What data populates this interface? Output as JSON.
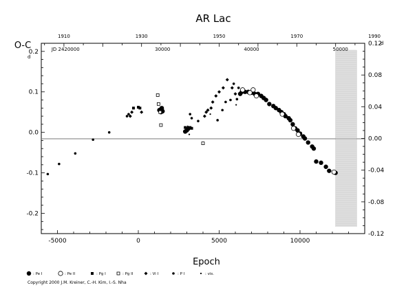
{
  "chart_data": {
    "type": "scatter",
    "title": "AR Lac",
    "xlabel": "Epoch",
    "ylabel": "O-C",
    "ylabel_unit": "d",
    "x_ticks": [
      "-5000",
      "0",
      "5000",
      "10000"
    ],
    "y_ticks": [
      "-0.2",
      "-0.1",
      "0.0",
      "0.1",
      "0.2"
    ],
    "right_ticks": [
      "-0.12",
      "-0.08",
      "-0.04",
      "0.00",
      "0.04",
      "0.08",
      "0.12"
    ],
    "right_unit": "d",
    "top_year_ticks": [
      "1910",
      "1930",
      "1950",
      "1970",
      "1990"
    ],
    "top_jd_label": "JD 2420000",
    "top_jd_ticks": [
      "30000",
      "40000",
      "50000"
    ],
    "xlim": [
      -6000,
      14000
    ],
    "ylim": [
      -0.25,
      0.22
    ],
    "right_ylim": [
      -0.12,
      0.12
    ],
    "grid": false,
    "series": [
      {
        "name": ": Pe I",
        "marker": "filled-circle",
        "points": [
          [
            12200,
            -0.1
          ],
          [
            11800,
            -0.095
          ],
          [
            11600,
            -0.085
          ],
          [
            11300,
            -0.075
          ],
          [
            11000,
            -0.072
          ],
          [
            10850,
            -0.04
          ],
          [
            10750,
            -0.035
          ],
          [
            10500,
            -0.025
          ],
          [
            10300,
            -0.015
          ],
          [
            10200,
            -0.01
          ],
          [
            10000,
            -0.003
          ],
          [
            9850,
            0.005
          ],
          [
            9700,
            0.01
          ],
          [
            9550,
            0.02
          ],
          [
            9400,
            0.03
          ],
          [
            9300,
            0.035
          ],
          [
            9100,
            0.04
          ],
          [
            9000,
            0.045
          ],
          [
            8850,
            0.05
          ],
          [
            8700,
            0.055
          ],
          [
            8500,
            0.06
          ],
          [
            8350,
            0.065
          ],
          [
            8100,
            0.07
          ],
          [
            7900,
            0.08
          ],
          [
            7750,
            0.085
          ],
          [
            7600,
            0.09
          ],
          [
            7400,
            0.095
          ],
          [
            7200,
            0.095
          ],
          [
            7000,
            0.098
          ],
          [
            6800,
            0.1
          ],
          [
            6600,
            0.1
          ],
          [
            6400,
            0.1
          ],
          [
            6300,
            0.095
          ],
          [
            3100,
            0.01
          ],
          [
            3000,
            0.005
          ],
          [
            2900,
            0.002
          ],
          [
            1300,
            0.055
          ],
          [
            1400,
            0.05
          ],
          [
            1450,
            0.06
          ],
          [
            1500,
            0.052
          ]
        ]
      },
      {
        "name": ": Pe II",
        "marker": "open-circle",
        "points": [
          [
            12100,
            -0.098
          ],
          [
            9900,
            -0.005
          ],
          [
            9600,
            0.01
          ],
          [
            8900,
            0.045
          ],
          [
            7300,
            0.09
          ],
          [
            7100,
            0.105
          ],
          [
            6900,
            0.098
          ],
          [
            6450,
            0.105
          ]
        ]
      },
      {
        "name": ": Pg I",
        "marker": "filled-square",
        "points": [
          [
            0,
            0.062
          ],
          [
            100,
            0.06
          ],
          [
            -300,
            0.06
          ],
          [
            1400,
            0.06
          ],
          [
            1500,
            0.055
          ],
          [
            2900,
            0.012
          ],
          [
            3100,
            0.008
          ],
          [
            3200,
            0.012
          ],
          [
            3300,
            0.01
          ]
        ]
      },
      {
        "name": ": Pg II",
        "marker": "open-square",
        "points": [
          [
            1200,
            0.092
          ],
          [
            1250,
            0.07
          ],
          [
            1400,
            0.018
          ],
          [
            4000,
            -0.027
          ],
          [
            1350,
            0.05
          ]
        ]
      },
      {
        "name": ": Vi I",
        "marker": "filled-diamond",
        "points": [
          [
            6000,
            0.095
          ],
          [
            5800,
            0.11
          ],
          [
            5500,
            0.13
          ],
          [
            5250,
            0.11
          ],
          [
            5000,
            0.1
          ],
          [
            4800,
            0.09
          ],
          [
            4600,
            0.075
          ],
          [
            4500,
            0.06
          ],
          [
            4300,
            0.055
          ],
          [
            4200,
            0.05
          ],
          [
            4100,
            0.04
          ],
          [
            -400,
            0.05
          ],
          [
            -500,
            0.04
          ],
          [
            200,
            0.05
          ]
        ]
      },
      {
        "name": ": P I",
        "marker": "small-dot",
        "points": [
          [
            -5600,
            -0.103
          ],
          [
            -4900,
            -0.078
          ],
          [
            -3900,
            -0.052
          ],
          [
            -2800,
            -0.018
          ],
          [
            -1800,
            0.0
          ],
          [
            -700,
            0.04
          ],
          [
            -600,
            0.045
          ],
          [
            3200,
            0.045
          ],
          [
            3300,
            0.035
          ],
          [
            3700,
            0.028
          ],
          [
            4900,
            0.03
          ],
          [
            5200,
            0.055
          ],
          [
            5400,
            0.075
          ],
          [
            5700,
            0.08
          ],
          [
            5900,
            0.12
          ],
          [
            6100,
            0.082
          ],
          [
            6200,
            0.11
          ]
        ]
      },
      {
        "name": ": vis.",
        "marker": "tiny-dot",
        "points": [
          [
            3150,
            -0.005
          ],
          [
            3050,
            0.015
          ],
          [
            4450,
            0.045
          ],
          [
            6050,
            0.068
          ]
        ]
      }
    ],
    "copyright": "Copyright 2000 J.M. Kreiner, C.-H. Kim, I.-S. Nha"
  }
}
